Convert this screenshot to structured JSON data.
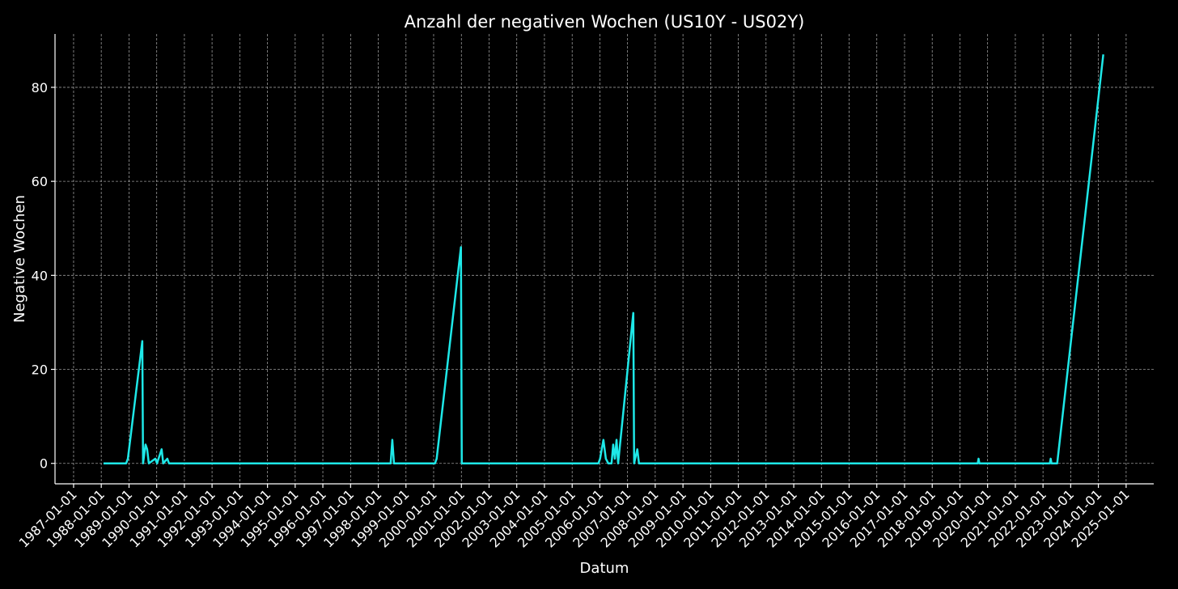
{
  "chart_data": {
    "type": "line",
    "title": "Anzahl der negativen Wochen (US10Y - US02Y)",
    "xlabel": "Datum",
    "ylabel": "Negative Wochen",
    "x": [
      "1988-01-30",
      "1988-11-24",
      "1988-12-17",
      "1989-06-25",
      "1989-07-05",
      "1989-08-07",
      "1989-08-28",
      "1989-09-19",
      "1989-12-14",
      "1990-01-05",
      "1990-03-07",
      "1990-03-28",
      "1990-05-21",
      "1990-06-12",
      "1998-06-13",
      "1998-07-05",
      "1998-07-27",
      "2000-01-19",
      "2000-02-10",
      "2000-12-26",
      "2001-01-06",
      "2005-12-13",
      "2006-01-04",
      "2006-02-17",
      "2006-03-21",
      "2006-04-23",
      "2006-06-04",
      "2006-06-26",
      "2006-07-18",
      "2006-08-09",
      "2006-08-30",
      "2007-03-18",
      "2007-03-29",
      "2007-05-10",
      "2007-06-01",
      "2019-08-24",
      "2019-09-04",
      "2019-09-15",
      "2022-04-01",
      "2022-04-12",
      "2022-04-23",
      "2022-07-07",
      "2024-03-06"
    ],
    "series": [
      {
        "name": "Negative Wochen",
        "color": "#1ee8e8",
        "values": [
          0,
          0,
          1,
          26,
          0,
          4,
          3,
          0,
          1,
          0,
          3,
          0,
          1,
          0,
          0,
          5,
          0,
          0,
          1,
          46,
          0,
          0,
          1,
          5,
          1,
          0,
          0,
          4,
          1,
          5,
          0,
          32,
          0,
          3,
          0,
          0,
          1,
          0,
          0,
          1,
          0,
          0,
          87
        ]
      }
    ],
    "xlim": [
      "1986-05-01",
      "2025-12-31"
    ],
    "xticks": [
      "1987-01-01",
      "1988-01-01",
      "1989-01-01",
      "1990-01-01",
      "1991-01-01",
      "1992-01-01",
      "1993-01-01",
      "1994-01-01",
      "1995-01-01",
      "1996-01-01",
      "1997-01-01",
      "1998-01-01",
      "1999-01-01",
      "2000-01-01",
      "2001-01-01",
      "2002-01-01",
      "2003-01-01",
      "2004-01-01",
      "2005-01-01",
      "2006-01-01",
      "2007-01-01",
      "2008-01-01",
      "2009-01-01",
      "2010-01-01",
      "2011-01-01",
      "2012-01-01",
      "2013-01-01",
      "2014-01-01",
      "2015-01-01",
      "2016-01-01",
      "2017-01-01",
      "2018-01-01",
      "2019-01-01",
      "2020-01-01",
      "2021-01-01",
      "2022-01-01",
      "2023-01-01",
      "2024-01-01",
      "2025-01-01"
    ],
    "ylim": [
      -4.35,
      91.35
    ],
    "yticks": [
      0,
      20,
      40,
      60,
      80
    ],
    "grid": true
  }
}
